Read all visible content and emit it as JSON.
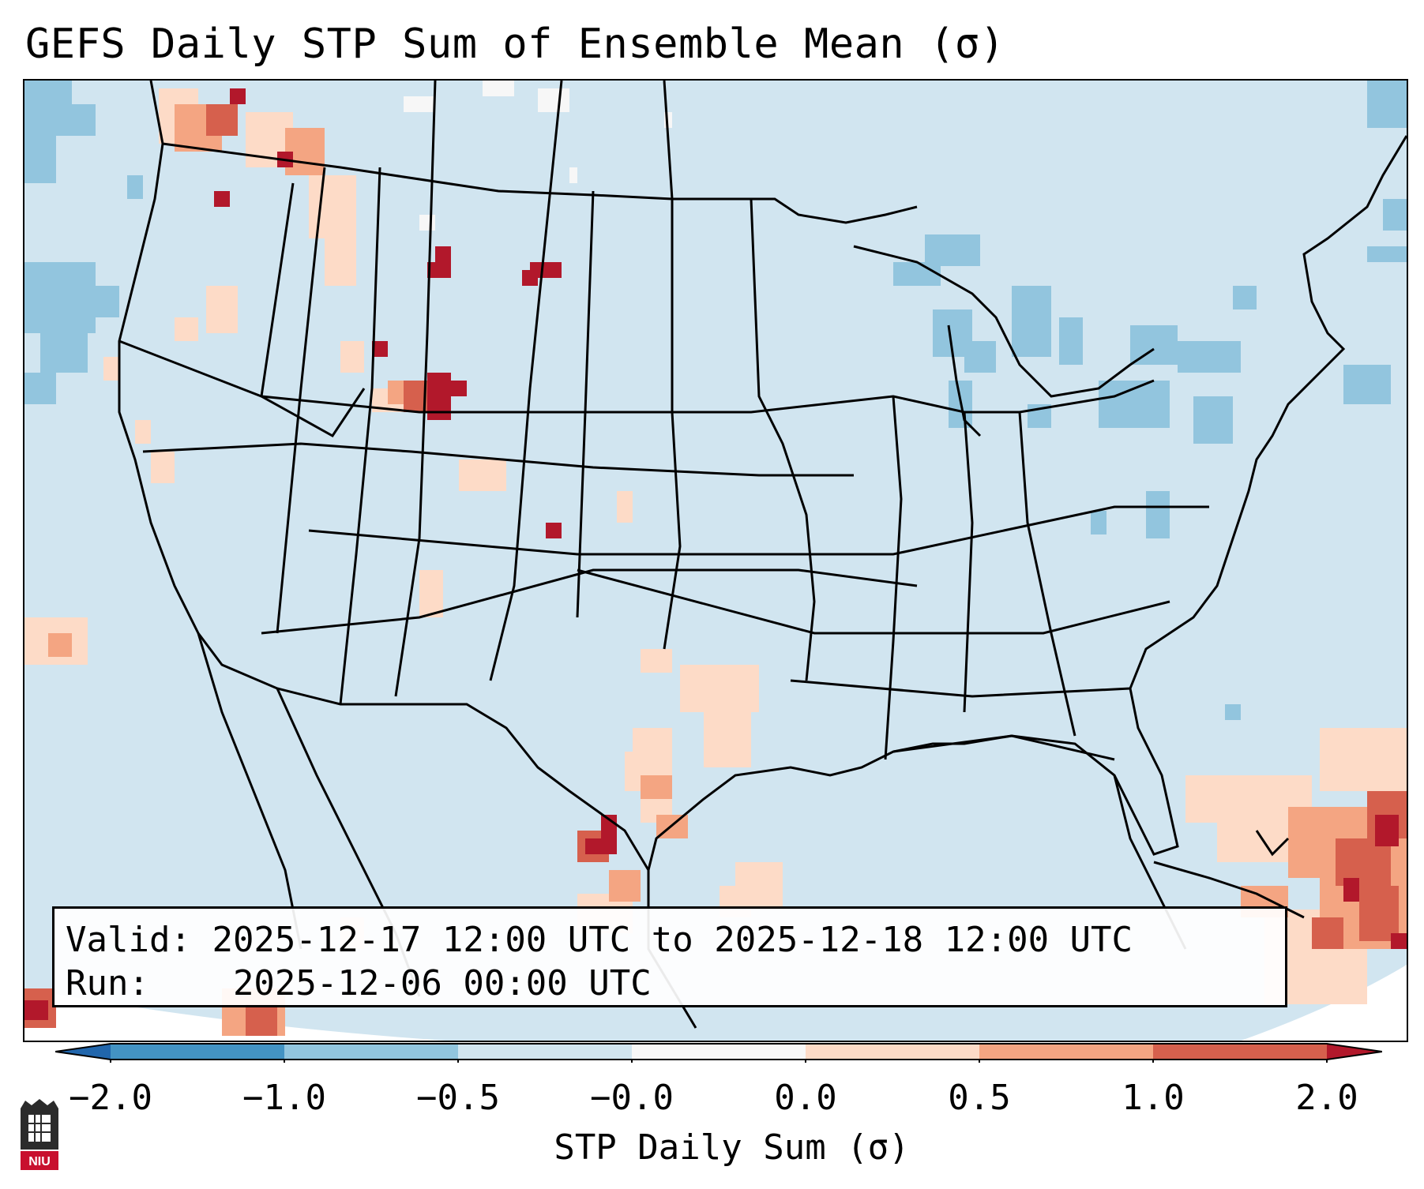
{
  "title": "GEFS Daily STP Sum of Ensemble Mean (σ)",
  "map": {
    "region": "Continental United States",
    "background_color": "#d1e5f0"
  },
  "info": {
    "valid_label": "Valid:",
    "valid_value": "2025-12-17 12:00 UTC to 2025-12-18 12:00 UTC",
    "run_label": "Run:",
    "run_value": "2025-12-06 00:00 UTC"
  },
  "colorbar": {
    "label": "STP Daily Sum (σ)",
    "ticks": [
      "−2.0",
      "−1.0",
      "−0.5",
      "−0.0",
      "0.0",
      "0.5",
      "1.0",
      "2.0"
    ],
    "colors": [
      "#4393c3",
      "#92c5de",
      "#d1e5f0",
      "#f7f7f7",
      "#fddbc7",
      "#f4a582",
      "#d6604d"
    ],
    "extend_low_color": "#2166ac",
    "extend_high_color": "#b2182b"
  },
  "logo": {
    "text": "NIU",
    "name": "niu-logo"
  },
  "icons": [
    "map-icon",
    "niu-logo"
  ]
}
